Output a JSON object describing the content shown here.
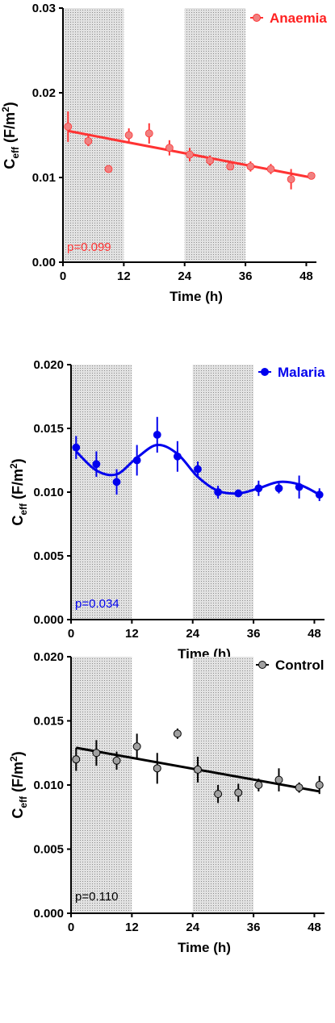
{
  "chart_data": [
    {
      "type": "scatter",
      "panel": "anaemia",
      "series": [
        {
          "name": "Anaemia",
          "color": "#ff3333",
          "marker_fill": "#f08080",
          "x": [
            1,
            5,
            9,
            13,
            17,
            21,
            25,
            29,
            33,
            37,
            41,
            45,
            49
          ],
          "y": [
            0.016,
            0.0143,
            0.011,
            0.015,
            0.0152,
            0.0135,
            0.0127,
            0.012,
            0.0113,
            0.0113,
            0.011,
            0.0098,
            0.0102
          ],
          "err": [
            0.0018,
            0.0006,
            0.0,
            0.0008,
            0.0012,
            0.0009,
            0.0008,
            0.0006,
            0.0004,
            0.0006,
            0.0006,
            0.0012,
            0.0003
          ]
        }
      ],
      "fit": {
        "kind": "linear",
        "x": [
          1,
          49
        ],
        "y": [
          0.0155,
          0.01
        ]
      },
      "shaded_intervals": [
        [
          0,
          12
        ],
        [
          24,
          36
        ]
      ],
      "xlabel": "Time  (h)",
      "ylabel_main": "C",
      "ylabel_sub": "eff",
      "ylabel_unit": "(F/m",
      "ylabel_sup": "2",
      "ylabel_close": ")",
      "xticks": [
        0,
        12,
        24,
        36,
        48
      ],
      "xtick_labels": [
        "0",
        "12",
        "24",
        "36",
        "48"
      ],
      "yticks": [
        0.0,
        0.01,
        0.02,
        0.03
      ],
      "ytick_labels": [
        "0.00",
        "0.01",
        "0.02",
        "0.03"
      ],
      "xlim": [
        0,
        50
      ],
      "ylim": [
        0,
        0.03
      ],
      "p_value": "p=0.099",
      "legend_position": "top-right"
    },
    {
      "type": "scatter",
      "panel": "malaria",
      "series": [
        {
          "name": "Malaria",
          "color": "#0000ee",
          "marker_fill": "#0000ee",
          "x": [
            1,
            5,
            9,
            13,
            17,
            21,
            25,
            29,
            33,
            37,
            41,
            45,
            49
          ],
          "y": [
            0.0135,
            0.0122,
            0.0108,
            0.0125,
            0.0145,
            0.0128,
            0.0118,
            0.01,
            0.0099,
            0.0103,
            0.0103,
            0.0104,
            0.0098
          ],
          "err": [
            0.0009,
            0.001,
            0.001,
            0.0012,
            0.0014,
            0.0012,
            0.0006,
            0.0005,
            0.0,
            0.0006,
            0.0004,
            0.0009,
            0.0005
          ]
        }
      ],
      "fit": {
        "kind": "smooth",
        "x": [
          1,
          5,
          9,
          13,
          17,
          21,
          25,
          29,
          33,
          37,
          41,
          45,
          49
        ],
        "y": [
          0.0132,
          0.0117,
          0.0114,
          0.0127,
          0.0137,
          0.013,
          0.0112,
          0.0101,
          0.0099,
          0.0103,
          0.0108,
          0.0106,
          0.0098
        ]
      },
      "shaded_intervals": [
        [
          0,
          12
        ],
        [
          24,
          36
        ]
      ],
      "xlabel": "Time  (h)",
      "ylabel_main": "C",
      "ylabel_sub": "eff",
      "ylabel_unit": "(F/m",
      "ylabel_sup": "2",
      "ylabel_close": ")",
      "xticks": [
        0,
        12,
        24,
        36,
        48
      ],
      "xtick_labels": [
        "0",
        "12",
        "24",
        "36",
        "48"
      ],
      "yticks": [
        0.0,
        0.005,
        0.01,
        0.015,
        0.02
      ],
      "ytick_labels": [
        "0.000",
        "0.005",
        "0.010",
        "0.015",
        "0.020"
      ],
      "xlim": [
        0,
        50
      ],
      "ylim": [
        0,
        0.02
      ],
      "p_value": "p=0.034",
      "legend_position": "top-right"
    },
    {
      "type": "scatter",
      "panel": "control",
      "series": [
        {
          "name": "Control",
          "color": "#000000",
          "marker_fill": "#a0a0a0",
          "x": [
            1,
            5,
            9,
            13,
            17,
            21,
            25,
            29,
            33,
            37,
            41,
            45,
            49
          ],
          "y": [
            0.012,
            0.0125,
            0.0119,
            0.013,
            0.0113,
            0.014,
            0.0112,
            0.0093,
            0.0094,
            0.01,
            0.0104,
            0.0098,
            0.01
          ],
          "err": [
            0.0009,
            0.001,
            0.0007,
            0.001,
            0.0012,
            0.0004,
            0.001,
            0.0007,
            0.0007,
            0.0005,
            0.0009,
            0.0004,
            0.0007
          ]
        }
      ],
      "fit": {
        "kind": "linear",
        "x": [
          1,
          49
        ],
        "y": [
          0.0129,
          0.0095
        ]
      },
      "shaded_intervals": [
        [
          0,
          12
        ],
        [
          24,
          36
        ]
      ],
      "xlabel": "Time  (h)",
      "ylabel_main": "C",
      "ylabel_sub": "eff",
      "ylabel_unit": "(F/m",
      "ylabel_sup": "2",
      "ylabel_close": ")",
      "xticks": [
        0,
        12,
        24,
        36,
        48
      ],
      "xtick_labels": [
        "0",
        "12",
        "24",
        "36",
        "48"
      ],
      "yticks": [
        0.0,
        0.005,
        0.01,
        0.015,
        0.02
      ],
      "ytick_labels": [
        "0.000",
        "0.005",
        "0.010",
        "0.015",
        "0.020"
      ],
      "xlim": [
        0,
        50
      ],
      "ylim": [
        0,
        0.02
      ],
      "p_value": "p=0.110",
      "legend_position": "top-right"
    }
  ]
}
